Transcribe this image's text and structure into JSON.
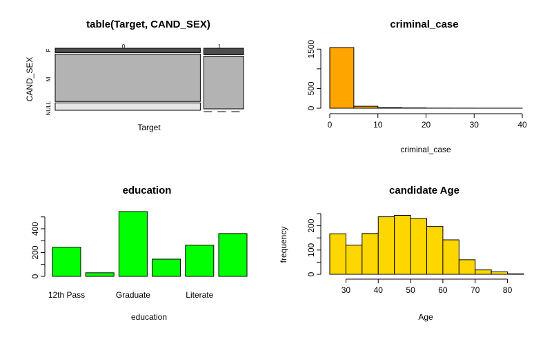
{
  "chart_data": [
    {
      "type": "mosaic",
      "title": "table(Target, CAND_SEX)",
      "xlabel": "Target",
      "ylabel": "CAND_SEX",
      "x_categories": [
        "0",
        "1"
      ],
      "y_categories": [
        "NULL",
        "M",
        "F"
      ],
      "column_widths": [
        0.785,
        0.215
      ],
      "cells": [
        {
          "target": "0",
          "F": 0.075,
          "M": 0.8,
          "NULL": 0.125
        },
        {
          "target": "1",
          "F": 0.11,
          "M": 0.89,
          "NULL": 0.0
        }
      ],
      "colors": {
        "F": "#4d4d4d",
        "M": "#b3b3b3",
        "NULL": "#e6e6e6"
      }
    },
    {
      "type": "bar",
      "subtype": "histogram",
      "title": "criminal_case",
      "xlabel": "criminal_case",
      "ylabel": "",
      "bins": [
        [
          0,
          5
        ],
        [
          5,
          10
        ],
        [
          10,
          15
        ],
        [
          15,
          20
        ],
        [
          20,
          25
        ],
        [
          25,
          30
        ],
        [
          30,
          35
        ],
        [
          35,
          40
        ]
      ],
      "values": [
        1540,
        50,
        15,
        8,
        3,
        2,
        1,
        1
      ],
      "x_ticks": [
        "0",
        "10",
        "20",
        "30",
        "40"
      ],
      "y_ticks": [
        "0",
        "500",
        "1500"
      ],
      "xlim": [
        0,
        40
      ],
      "ylim": [
        0,
        1540
      ],
      "color": "#FFA500"
    },
    {
      "type": "bar",
      "title": "education",
      "xlabel": "education",
      "ylabel": "",
      "categories": [
        "12th Pass",
        "",
        "Graduate",
        "",
        "Literate",
        ""
      ],
      "values": [
        245,
        30,
        545,
        145,
        262,
        360
      ],
      "y_ticks": [
        "0",
        "200",
        "400"
      ],
      "ylim": [
        0,
        545
      ],
      "color": "#00FF00"
    },
    {
      "type": "bar",
      "subtype": "histogram",
      "title": "candidate Age",
      "xlabel": "Age",
      "ylabel": "frequency",
      "bins": [
        [
          25,
          30
        ],
        [
          30,
          35
        ],
        [
          35,
          40
        ],
        [
          40,
          45
        ],
        [
          45,
          50
        ],
        [
          50,
          55
        ],
        [
          55,
          60
        ],
        [
          60,
          65
        ],
        [
          65,
          70
        ],
        [
          70,
          75
        ],
        [
          75,
          80
        ],
        [
          80,
          85
        ]
      ],
      "values": [
        167,
        120,
        168,
        237,
        243,
        230,
        197,
        142,
        60,
        18,
        10,
        2
      ],
      "x_ticks": [
        "30",
        "40",
        "50",
        "60",
        "70",
        "80"
      ],
      "y_ticks": [
        "0",
        "100",
        "200"
      ],
      "xlim": [
        25,
        85
      ],
      "ylim": [
        0,
        250
      ],
      "color": "#FFD700"
    }
  ]
}
